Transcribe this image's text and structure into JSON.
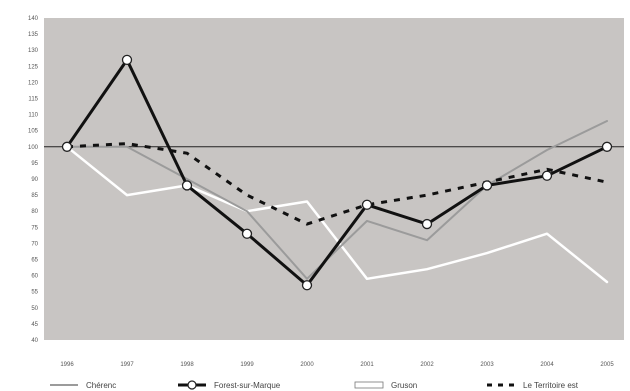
{
  "chart_data": {
    "type": "line",
    "title": "",
    "xlabel": "",
    "ylabel": "",
    "x": [
      "1996",
      "1997",
      "1998",
      "1999",
      "2000",
      "2001",
      "2002",
      "2003",
      "2004",
      "2005"
    ],
    "ylim": [
      40,
      140
    ],
    "yticks": [
      40,
      45,
      50,
      55,
      60,
      65,
      70,
      75,
      80,
      85,
      90,
      95,
      100,
      105,
      110,
      115,
      120,
      125,
      130,
      135,
      140
    ],
    "reference_line": 100,
    "grid": false,
    "legend_position": "bottom",
    "plot_background": "#c8c5c3",
    "series": [
      {
        "name": "Chérenc",
        "color": "#9b9b9b",
        "style": "solid-thin",
        "values": [
          100,
          100,
          90,
          80,
          59,
          77,
          71,
          88,
          99,
          108
        ]
      },
      {
        "name": "Forest-sur-Marque",
        "color": "#111111",
        "style": "solid-thick-circle-markers",
        "values": [
          100,
          127,
          88,
          73,
          57,
          82,
          76,
          88,
          91,
          100
        ]
      },
      {
        "name": "Gruson",
        "color": "#ffffff",
        "style": "solid-white",
        "values": [
          100,
          85,
          88,
          80,
          83,
          59,
          62,
          67,
          73,
          58
        ]
      },
      {
        "name": "Le Territoire est",
        "color": "#111111",
        "style": "dashed",
        "values": [
          100,
          101,
          98,
          85,
          76,
          82,
          85,
          89,
          93,
          89
        ]
      }
    ]
  }
}
